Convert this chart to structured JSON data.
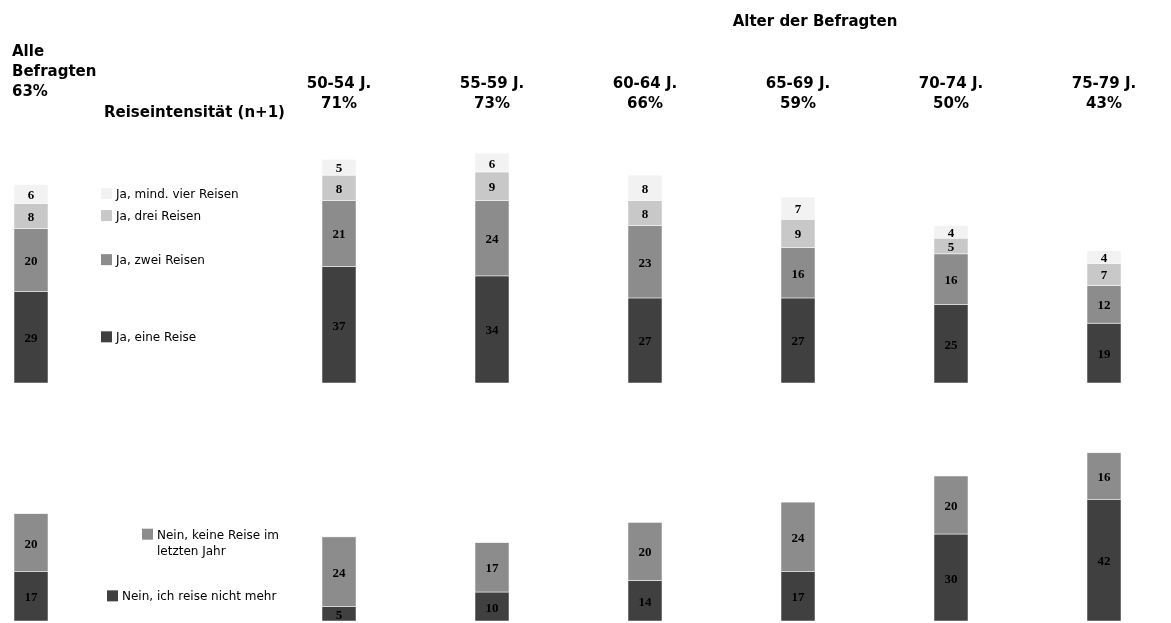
{
  "chart_data": [
    {
      "type": "bar",
      "stacked": true,
      "legend_title": "Reiseintensität (n+1)",
      "data_labels": true,
      "legend": "right",
      "categories": [
        "Alle\nBefragten\n63%"
      ],
      "series": [
        {
          "name": "Ja, eine Reise",
          "color": "#404040",
          "values": [
            29
          ]
        },
        {
          "name": "Ja, zwei Reisen",
          "color": "#8c8c8c",
          "values": [
            20
          ]
        },
        {
          "name": "Ja, drei Reisen",
          "color": "#c8c8c8",
          "values": [
            8
          ]
        },
        {
          "name": "Ja, mind. vier Reisen",
          "color": "#f2f2f2",
          "values": [
            6
          ]
        }
      ]
    },
    {
      "type": "bar",
      "stacked": true,
      "title": "Alter der Befragten",
      "data_labels": true,
      "categories": [
        "50-54 J.\n71%",
        "55-59 J.\n73%",
        "60-64 J.\n66%",
        "65-69 J.\n59%",
        "70-74 J.\n50%",
        "75-79 J.\n43%"
      ],
      "series": [
        {
          "color": "#404040",
          "values": [
            37,
            34,
            27,
            27,
            25,
            19
          ]
        },
        {
          "color": "#8c8c8c",
          "values": [
            21,
            24,
            23,
            16,
            16,
            12
          ]
        },
        {
          "color": "#c8c8c8",
          "values": [
            8,
            9,
            8,
            9,
            5,
            7
          ]
        },
        {
          "color": "#f2f2f2",
          "values": [
            5,
            6,
            8,
            7,
            4,
            4
          ]
        }
      ]
    },
    {
      "type": "bar",
      "stacked": true,
      "data_labels": true,
      "legend": "right",
      "categories": [
        null
      ],
      "series": [
        {
          "name": "Nein, ich reise nicht mehr",
          "color": "#404040",
          "values": [
            17
          ]
        },
        {
          "name": "Nein, keine Reise im\nletzten Jahr",
          "color": "#8c8c8c",
          "values": [
            20
          ]
        }
      ]
    },
    {
      "type": "bar",
      "stacked": true,
      "data_labels": true,
      "categories": [
        null,
        null,
        null,
        null,
        null,
        null
      ],
      "series": [
        {
          "color": "#404040",
          "values": [
            5,
            10,
            14,
            17,
            30,
            42
          ]
        },
        {
          "color": "#8c8c8c",
          "values": [
            24,
            17,
            20,
            24,
            20,
            16
          ]
        }
      ]
    }
  ]
}
